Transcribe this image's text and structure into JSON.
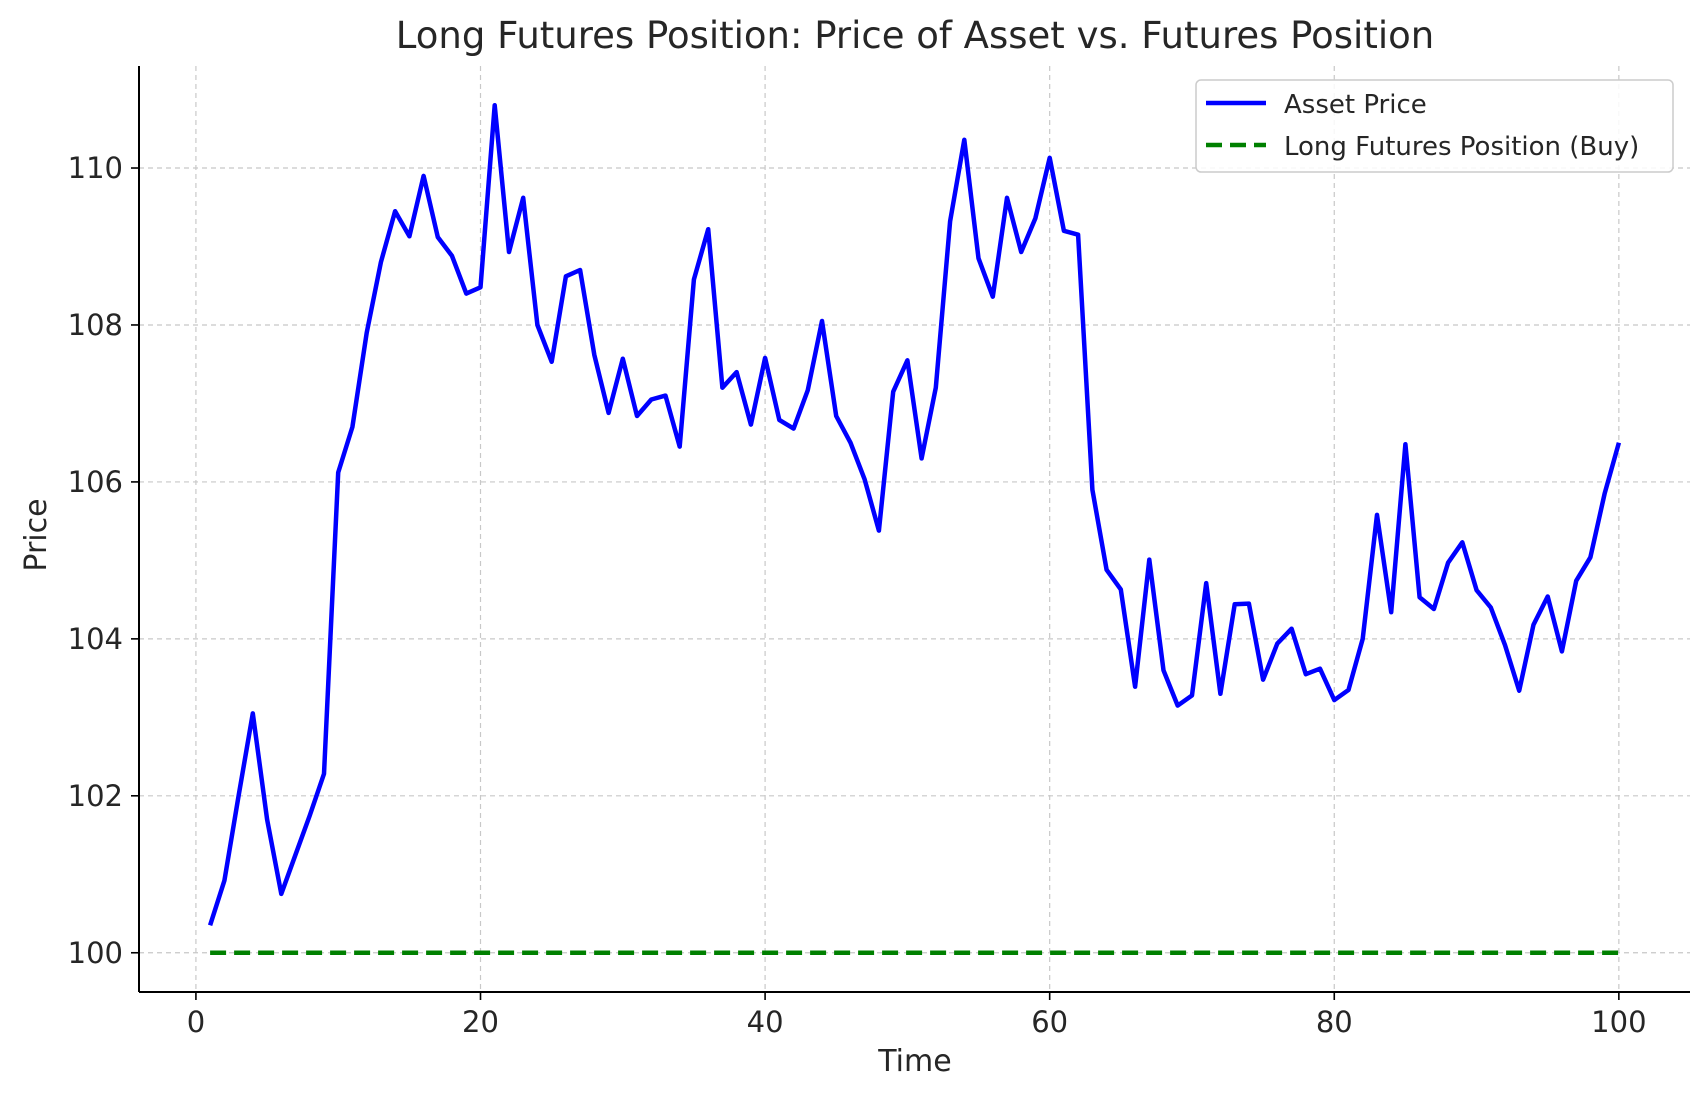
{
  "chart_data": {
    "type": "line",
    "title": "Long Futures Position: Price of Asset vs. Futures Position",
    "xlabel": "Time",
    "ylabel": "Price",
    "xlim": [
      -4,
      105
    ],
    "ylim": [
      99.5,
      111.3
    ],
    "xticks": [
      0,
      20,
      40,
      60,
      80,
      100
    ],
    "yticks": [
      100,
      102,
      104,
      106,
      108,
      110
    ],
    "grid": true,
    "legend_position": "top-right",
    "series": [
      {
        "name": "Asset Price",
        "color": "#0000ff",
        "style": "solid",
        "x": [
          1,
          2,
          3,
          4,
          5,
          6,
          7,
          8,
          9,
          10,
          11,
          12,
          13,
          14,
          15,
          16,
          17,
          18,
          19,
          20,
          21,
          22,
          23,
          24,
          25,
          26,
          27,
          28,
          29,
          30,
          31,
          32,
          33,
          34,
          35,
          36,
          37,
          38,
          39,
          40,
          41,
          42,
          43,
          44,
          45,
          46,
          47,
          48,
          49,
          50,
          51,
          52,
          53,
          54,
          55,
          56,
          57,
          58,
          59,
          60,
          61,
          62,
          63,
          64,
          65,
          66,
          67,
          68,
          69,
          70,
          71,
          72,
          73,
          74,
          75,
          76,
          77,
          78,
          79,
          80,
          81,
          82,
          83,
          84,
          85,
          86,
          87,
          88,
          89,
          90,
          91,
          92,
          93,
          94,
          95,
          96,
          97,
          98,
          99,
          100
        ],
        "values": [
          100.35,
          100.92,
          102.0,
          103.05,
          101.7,
          100.75,
          101.25,
          101.75,
          102.28,
          106.12,
          106.7,
          107.9,
          108.8,
          109.45,
          109.13,
          109.9,
          109.12,
          108.88,
          108.4,
          108.48,
          110.8,
          108.93,
          109.62,
          108.0,
          107.53,
          108.62,
          108.7,
          107.62,
          106.88,
          107.57,
          106.84,
          107.05,
          107.1,
          106.45,
          108.58,
          109.22,
          107.2,
          107.4,
          106.73,
          107.58,
          106.79,
          106.68,
          107.17,
          108.05,
          106.84,
          106.5,
          106.03,
          105.38,
          107.15,
          107.55,
          106.3,
          107.2,
          109.32,
          110.36,
          108.85,
          108.36,
          109.62,
          108.93,
          109.36,
          110.13,
          109.2,
          109.15,
          105.9,
          104.88,
          104.63,
          103.39,
          105.01,
          103.6,
          103.15,
          103.28,
          104.71,
          103.3,
          104.44,
          104.45,
          103.48,
          103.94,
          104.13,
          103.55,
          103.62,
          103.22,
          103.35,
          104.0,
          105.58,
          104.34,
          106.48,
          104.53,
          104.38,
          104.97,
          105.23,
          104.62,
          104.4,
          103.92,
          103.34,
          104.18,
          104.54,
          103.84,
          104.74,
          105.04,
          105.85,
          106.5
        ]
      },
      {
        "name": "Long Futures Position (Buy)",
        "color": "#008000",
        "style": "dashed",
        "x": [
          1,
          100
        ],
        "values": [
          100,
          100
        ]
      }
    ]
  }
}
